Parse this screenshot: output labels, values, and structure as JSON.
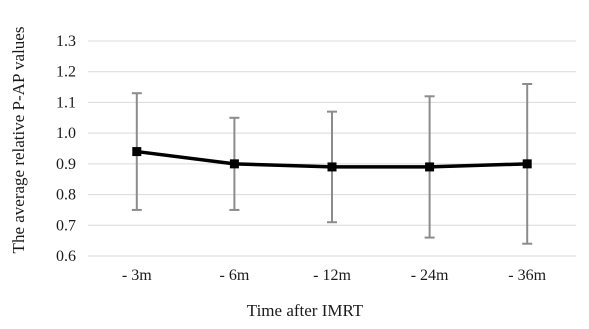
{
  "chart_data": {
    "type": "line",
    "title": "",
    "xlabel": "Time after IMRT",
    "ylabel": "The average relative P-AP values",
    "categories": [
      "- 3m",
      "- 6m",
      "- 12m",
      "- 24m",
      "- 36m"
    ],
    "ylim": [
      0.6,
      1.3
    ],
    "yticks": [
      "0.6",
      "0.7",
      "0.8",
      "0.9",
      "1.0",
      "1.1",
      "1.2",
      "1.3"
    ],
    "grid": true,
    "legend": "none",
    "series": [
      {
        "values": [
          0.94,
          0.9,
          0.89,
          0.89,
          0.9
        ],
        "error_high": [
          1.13,
          1.05,
          1.07,
          1.12,
          1.16
        ],
        "error_low": [
          0.75,
          0.75,
          0.71,
          0.66,
          0.64
        ],
        "line_color": "#000000",
        "marker": "square",
        "error_color": "#8c8c8c"
      }
    ],
    "colors": {
      "grid": "#d9d9d9",
      "line": "#000000",
      "error_bar": "#8c8c8c",
      "text": "#1a1a1a"
    }
  }
}
